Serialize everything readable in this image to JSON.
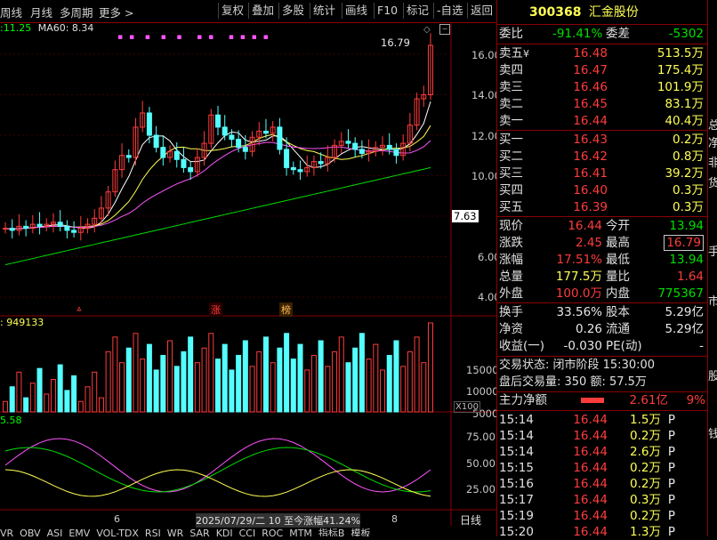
{
  "toolbar": {
    "left": [
      "周线",
      "月线",
      "多周期",
      "更多"
    ],
    "more_arrow": ">",
    "buttons": [
      "复权",
      "叠加",
      "多股",
      "统计",
      "画线",
      "F10",
      "标记",
      "-自选",
      "返回"
    ]
  },
  "main_chart": {
    "ma_legend": [
      {
        "text": ":11.25",
        "color": "#00ff00"
      },
      {
        "text": "MA60: 8.34",
        "color": "#e0e0e0"
      }
    ],
    "high_marker": "16.79",
    "price_axis": [
      "16.00",
      "14.00",
      "12.00",
      "10.00",
      "7.63",
      "6.00",
      "4.00"
    ],
    "tags": [
      "涨",
      "榜"
    ]
  },
  "volume_panel": {
    "legend": ": 949133",
    "axis": [
      "15000",
      "10000",
      "5000"
    ],
    "unit": "X100"
  },
  "indicator_panel": {
    "legend": "5.58",
    "axis": [
      "75.00",
      "50.00",
      "25.00"
    ]
  },
  "x_axis": {
    "labels": [
      "6",
      "8"
    ],
    "range_info": "2025/07/29/二 10 至今涨幅41.24%",
    "period_button": "日线"
  },
  "bottom_tabs": [
    "VR",
    "OBV",
    "ASI",
    "EMV",
    "VOL-TDX",
    "RSI",
    "WR",
    "SAR",
    "KDJ",
    "CCI",
    "ROC",
    "MTM",
    "指标B",
    "模板"
  ],
  "quote": {
    "code": "300368",
    "name": "汇金股份",
    "weibi_label": "委比",
    "weibi_value": "-91.41%",
    "weicha_label": "委差",
    "weicha_value": "-5302",
    "asks": [
      {
        "label": "卖五",
        "flag": "¥",
        "price": "16.48",
        "vol": "513.5万"
      },
      {
        "label": "卖四",
        "flag": "",
        "price": "16.47",
        "vol": "175.4万"
      },
      {
        "label": "卖三",
        "flag": "",
        "price": "16.46",
        "vol": "101.9万"
      },
      {
        "label": "卖二",
        "flag": "",
        "price": "16.45",
        "vol": "83.1万"
      },
      {
        "label": "卖一",
        "flag": "",
        "price": "16.44",
        "vol": "40.4万"
      }
    ],
    "bids": [
      {
        "label": "买一",
        "price": "16.43",
        "vol": "0.2万"
      },
      {
        "label": "买二",
        "price": "16.42",
        "vol": "0.8万"
      },
      {
        "label": "买三",
        "price": "16.41",
        "vol": "39.2万"
      },
      {
        "label": "买四",
        "price": "16.40",
        "vol": "0.3万"
      },
      {
        "label": "买五",
        "price": "16.39",
        "vol": "0.3万"
      }
    ],
    "stats": [
      {
        "l1": "现价",
        "v1": "16.44",
        "c1": "#ff3c3c",
        "l2": "今开",
        "v2": "13.94",
        "c2": "#00e000"
      },
      {
        "l1": "涨跌",
        "v1": "2.45",
        "c1": "#ff3c3c",
        "l2": "最高",
        "v2": "16.79",
        "c2": "#ff3c3c"
      },
      {
        "l1": "涨幅",
        "v1": "17.51%",
        "c1": "#ff3c3c",
        "l2": "最低",
        "v2": "13.94",
        "c2": "#00e000"
      },
      {
        "l1": "总量",
        "v1": "177.5万",
        "c1": "#ffff54",
        "l2": "量比",
        "v2": "1.64",
        "c2": "#ff3c3c"
      },
      {
        "l1": "外盘",
        "v1": "100.0万",
        "c1": "#ff3c3c",
        "l2": "内盘",
        "v2": "775367",
        "c2": "#00e000"
      }
    ],
    "stats2": [
      {
        "l1": "换手",
        "v1": "33.56%",
        "l2": "股本",
        "v2": "5.29亿"
      },
      {
        "l1": "净资",
        "v1": "0.26",
        "l2": "流通",
        "v2": "5.29亿"
      },
      {
        "l1": "收益(一)",
        "v1": "-0.030",
        "l2": "PE(动)",
        "v2": "-"
      }
    ],
    "trade_status": "交易状态: 闭市阶段 15:30:00",
    "after_hours": "盘后交易量: 350  额: 57.5万",
    "main_flow_label": "主力净额",
    "main_flow_value": "2.61亿",
    "main_flow_pct": "9%",
    "ticks": [
      {
        "time": "15:14",
        "price": "16.44",
        "vol": "1.5万",
        "side": "P"
      },
      {
        "time": "15:14",
        "price": "16.44",
        "vol": "0.2万",
        "side": "P"
      },
      {
        "time": "15:14",
        "price": "16.44",
        "vol": "2.6万",
        "side": "P"
      },
      {
        "time": "15:15",
        "price": "16.44",
        "vol": "0.2万",
        "side": "P"
      },
      {
        "time": "15:16",
        "price": "16.44",
        "vol": "0.2万",
        "side": "P"
      },
      {
        "time": "15:17",
        "price": "16.44",
        "vol": "0.3万",
        "side": "P"
      },
      {
        "time": "15:19",
        "price": "16.44",
        "vol": "0.2万",
        "side": "P"
      },
      {
        "time": "15:20",
        "price": "16.44",
        "vol": "1.3万",
        "side": "P"
      }
    ]
  },
  "side_strip": [
    "总",
    "净",
    "非",
    "货",
    "手",
    "市",
    "股",
    "钱"
  ]
}
